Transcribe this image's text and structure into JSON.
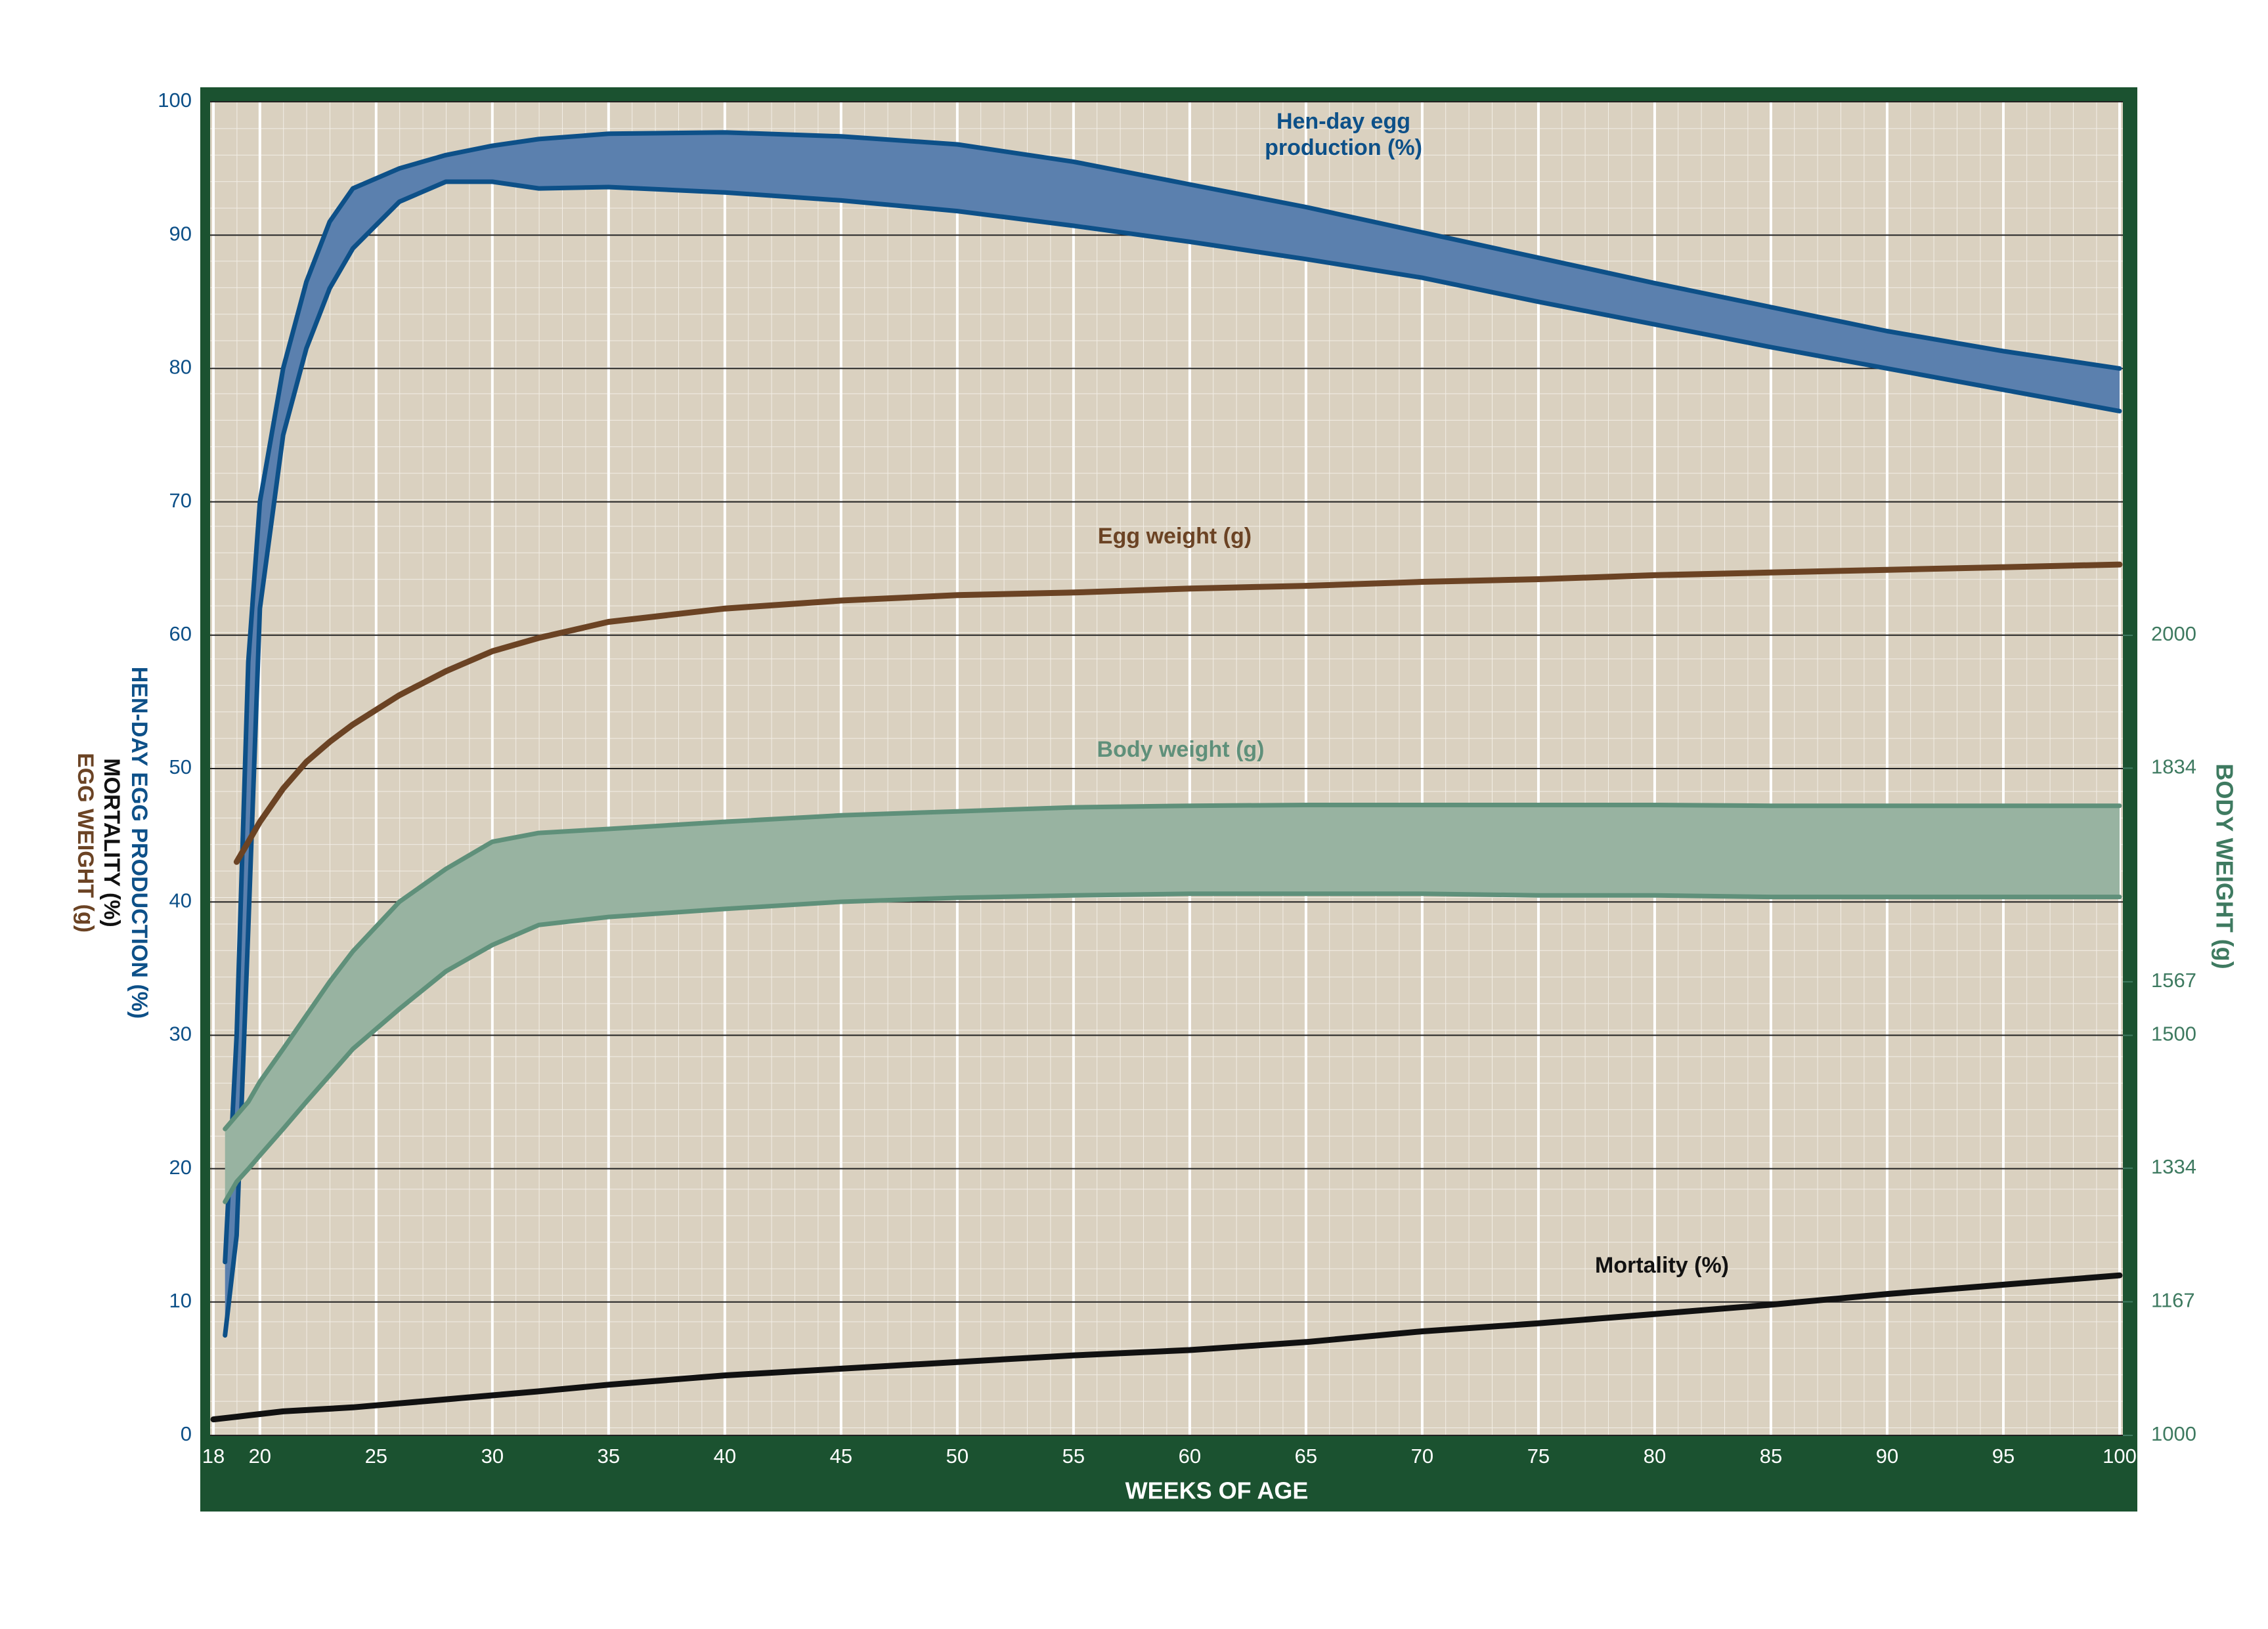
{
  "chart_data": {
    "type": "line",
    "x_label": "WEEKS OF AGE",
    "y_label": [
      "HEN-DAY EGG PRODUCTION (%)",
      "MORTALITY (%)",
      "EGG WEIGHT (g)"
    ],
    "y2_label": "BODY WEIGHT (g)",
    "x": [
      18,
      18.5,
      19,
      19.5,
      20,
      21,
      22,
      23,
      24,
      26,
      28,
      30,
      32,
      35,
      40,
      45,
      50,
      55,
      60,
      65,
      70,
      75,
      80,
      85,
      90,
      95,
      100
    ],
    "xlim": [
      18,
      100
    ],
    "xticks": [
      18,
      20,
      25,
      30,
      35,
      40,
      45,
      50,
      55,
      60,
      65,
      70,
      75,
      80,
      85,
      90,
      95,
      100
    ],
    "ylim": [
      0,
      100
    ],
    "yticks": [
      0,
      10,
      20,
      30,
      40,
      50,
      60,
      70,
      80,
      90,
      100
    ],
    "y2lim": [
      1000,
      2667
    ],
    "y2ticks": [
      1000,
      1167,
      1334,
      1500,
      1567,
      1834,
      2000
    ],
    "grid": true,
    "series": [
      {
        "name": "Hen-day egg production (%)",
        "color": "#0d5088",
        "fill": "#5b80ae",
        "values": [
          null,
          13,
          30,
          58,
          70,
          80,
          86.5,
          91,
          93.5,
          95,
          96,
          96.7,
          97.2,
          97.6,
          97.7,
          97.4,
          96.8,
          95.5,
          93.8,
          92.1,
          90.2,
          88.3,
          86.4,
          84.6,
          82.8,
          81.3,
          80
        ],
        "lower_values": [
          null,
          7.5,
          15,
          38,
          62,
          75,
          81.5,
          86,
          89,
          92.5,
          94,
          94,
          93.5,
          93.6,
          93.2,
          92.6,
          91.8,
          90.7,
          89.5,
          88.2,
          86.8,
          85,
          83.3,
          81.6,
          80,
          78.4,
          76.8
        ]
      },
      {
        "name": "Egg weight (g)",
        "color": "#6b4324",
        "values": [
          null,
          null,
          43,
          44.5,
          46,
          48.5,
          50.5,
          52,
          53.3,
          55.5,
          57.3,
          58.8,
          59.8,
          61,
          62,
          62.6,
          63,
          63.2,
          63.5,
          63.7,
          64,
          64.2,
          64.5,
          64.7,
          64.9,
          65.1,
          65.3
        ]
      },
      {
        "name": "Body weight (g)",
        "color": "#5f907a",
        "fill": "#98b3a1",
        "axis": "y2",
        "values": [
          null,
          1383,
          1400,
          1417,
          1442,
          1483,
          1525,
          1567,
          1605,
          1667,
          1708,
          1742,
          1753,
          1758,
          1767,
          1775,
          1780,
          1785,
          1787,
          1788,
          1788,
          1788,
          1788,
          1787,
          1787,
          1787,
          1787
        ],
        "lower_values": [
          null,
          1292,
          1317,
          1333,
          1350,
          1383,
          1417,
          1450,
          1483,
          1533,
          1580,
          1613,
          1638,
          1648,
          1658,
          1667,
          1672,
          1675,
          1677,
          1677,
          1677,
          1675,
          1675,
          1673,
          1673,
          1673,
          1673
        ]
      },
      {
        "name": "Mortality (%)",
        "color": "#111111",
        "values": [
          1.2,
          1.3,
          1.4,
          1.5,
          1.6,
          1.8,
          1.9,
          2,
          2.1,
          2.4,
          2.7,
          3,
          3.3,
          3.8,
          4.5,
          5,
          5.5,
          6,
          6.4,
          7,
          7.8,
          8.4,
          9.1,
          9.8,
          10.6,
          11.3,
          12
        ]
      }
    ]
  }
}
